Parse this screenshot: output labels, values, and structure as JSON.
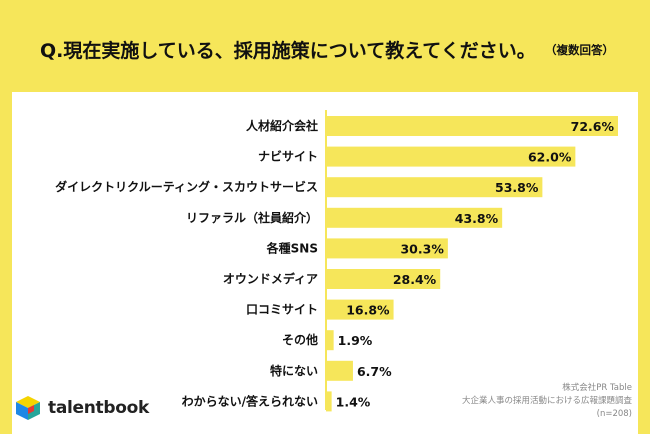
{
  "header": {
    "question": "Q.現在実施している、採用施策について教えてください。",
    "note": "（複数回答）"
  },
  "source": {
    "line1": "株式会社PR Table",
    "line2": "大企業人事の採用活動における広報課題調査",
    "line3": "(n=208)"
  },
  "logo": {
    "text": "talentbook",
    "colors": [
      "#1e88e5",
      "#f5d400",
      "#26a69a",
      "#e53935"
    ]
  },
  "chart_data": {
    "type": "bar",
    "orientation": "horizontal",
    "categories": [
      "人材紹介会社",
      "ナビサイト",
      "ダイレクトリクルーティング・スカウトサービス",
      "リファラル（社員紹介）",
      "各種SNS",
      "オウンドメディア",
      "口コミサイト",
      "その他",
      "特にない",
      "わからない/答えられない"
    ],
    "values": [
      72.6,
      62.0,
      53.8,
      43.8,
      30.3,
      28.4,
      16.8,
      1.9,
      6.7,
      1.4
    ],
    "value_labels": [
      "72.6%",
      "62.0%",
      "53.8%",
      "43.8%",
      "30.3%",
      "28.4%",
      "16.8%",
      "1.9%",
      "6.7%",
      "1.4%"
    ],
    "xlim": [
      0,
      72.6
    ],
    "bar_color": "#f6e65a",
    "grid": false
  }
}
